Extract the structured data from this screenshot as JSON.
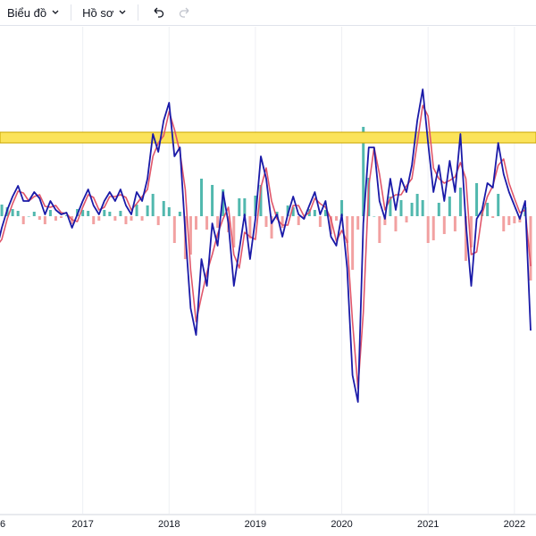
{
  "toolbar": {
    "chart_menu": "Biểu đồ",
    "profile_menu": "Hồ sơ"
  },
  "chart_data": {
    "type": "line",
    "categories": [
      "6",
      null,
      null,
      null,
      null,
      null,
      null,
      null,
      null,
      null,
      null,
      null,
      null,
      null,
      null,
      null,
      "2017",
      null,
      null,
      null,
      null,
      null,
      null,
      null,
      null,
      null,
      null,
      null,
      null,
      null,
      null,
      null,
      "2018",
      null,
      null,
      null,
      null,
      null,
      null,
      null,
      null,
      null,
      null,
      null,
      null,
      null,
      null,
      null,
      "2019",
      null,
      null,
      null,
      null,
      null,
      null,
      null,
      null,
      null,
      null,
      null,
      null,
      null,
      null,
      null,
      "2020",
      null,
      null,
      null,
      null,
      null,
      null,
      null,
      null,
      null,
      null,
      null,
      null,
      null,
      null,
      null,
      "2021",
      null,
      null,
      null,
      null,
      null,
      null,
      null,
      null,
      null,
      null,
      null,
      null,
      null,
      null,
      null,
      "2022",
      null,
      null,
      null
    ],
    "ylim": [
      -166.5,
      106
    ],
    "grid": true,
    "band": {
      "range": [
        41,
        47
      ],
      "color": "#fbe35a",
      "edge_color": "#c9a400"
    },
    "histogram": {
      "color": "#26a69a",
      "negative_color": "#ef8a8a",
      "values": [
        -2,
        6.5,
        5,
        4,
        3,
        -4.5,
        0,
        2.5,
        -2,
        -4.5,
        3.5,
        -2.5,
        -1,
        0.5,
        -4.5,
        4,
        3.5,
        3,
        -4.5,
        -2.5,
        3.5,
        2.5,
        -2.5,
        3,
        -4.5,
        -2.5,
        6.5,
        -2.5,
        6,
        12.5,
        -5,
        8.5,
        5,
        -15,
        2.5,
        -24,
        -21.5,
        -7.5,
        21,
        -7.5,
        17.5,
        -6.5,
        15,
        -9,
        -17.5,
        10,
        10,
        -12.5,
        11.5,
        17.5,
        -6,
        -12.5,
        2.5,
        -6.5,
        6,
        5,
        -5,
        -1.5,
        4,
        3.5,
        -6,
        3.5,
        -10,
        -2.5,
        9,
        -15,
        -30,
        -7.5,
        50,
        21.5,
        0,
        -15,
        -5,
        11,
        -8.5,
        9,
        -3.5,
        7.5,
        12.5,
        9,
        -15,
        -13.5,
        7.5,
        -10,
        11,
        -8.5,
        16,
        -25,
        -17.5,
        18.5,
        2.5,
        7.5,
        -1,
        12.5,
        -8.5,
        -5,
        -4,
        -3.5,
        5,
        -36
      ]
    },
    "series": [
      {
        "color": "#e0566a",
        "values": [
          -17,
          -13,
          -1.5,
          7,
          14,
          13,
          8.5,
          11,
          12,
          5.5,
          5,
          6,
          2,
          1.5,
          -2,
          -3,
          5,
          12,
          10.5,
          3.5,
          5,
          11,
          11,
          12,
          10.5,
          3.5,
          7,
          11,
          15,
          33.5,
          41,
          45,
          58.5,
          48.5,
          36,
          15,
          -30,
          -59,
          -45,
          -31.5,
          -21.5,
          -10,
          -1.5,
          5,
          -21.5,
          -29,
          -9,
          -11.5,
          -13,
          16,
          27,
          8.5,
          -1.5,
          -5,
          -5,
          6,
          6,
          0,
          2,
          10,
          7,
          5,
          -1.5,
          -14,
          -8,
          -14,
          -59,
          -96.5,
          -54,
          17,
          38.5,
          23.5,
          3.5,
          10,
          12,
          12,
          17,
          21,
          41,
          62,
          56,
          27,
          21,
          18.5,
          20,
          22,
          30,
          21,
          -21.5,
          -20,
          1,
          11,
          17,
          28.5,
          32,
          18.5,
          10,
          2,
          3.5,
          -28
        ]
      },
      {
        "color": "#1a1aa8",
        "values": [
          -19,
          -6.5,
          3.5,
          11,
          17,
          8.5,
          8.5,
          13.5,
          10,
          1,
          8.5,
          3.5,
          1,
          2,
          -6.5,
          1,
          8.5,
          15,
          6,
          1,
          8.5,
          13.5,
          8.5,
          15,
          6,
          1,
          13.5,
          8.5,
          21,
          46,
          36,
          53.5,
          63.5,
          33.5,
          38.5,
          -9,
          -51.5,
          -66.5,
          -24,
          -39,
          -4,
          -16.5,
          13.5,
          -4,
          -39,
          -19,
          1,
          -24,
          -1.5,
          33.5,
          21,
          -4,
          1,
          -11.5,
          1,
          11,
          1,
          -1.5,
          6,
          13.5,
          1,
          8.5,
          -11.5,
          -16.5,
          1,
          -29,
          -89,
          -104,
          -4,
          38.5,
          38.5,
          8.5,
          -1.5,
          21,
          3.5,
          21,
          13.5,
          28.5,
          53.5,
          71,
          41,
          13.5,
          28.5,
          8.5,
          31,
          13.5,
          46,
          -4,
          -39,
          -1.5,
          3.5,
          18.5,
          16,
          41,
          23.5,
          13.5,
          6,
          -1.5,
          8.5,
          -64
        ]
      }
    ]
  }
}
